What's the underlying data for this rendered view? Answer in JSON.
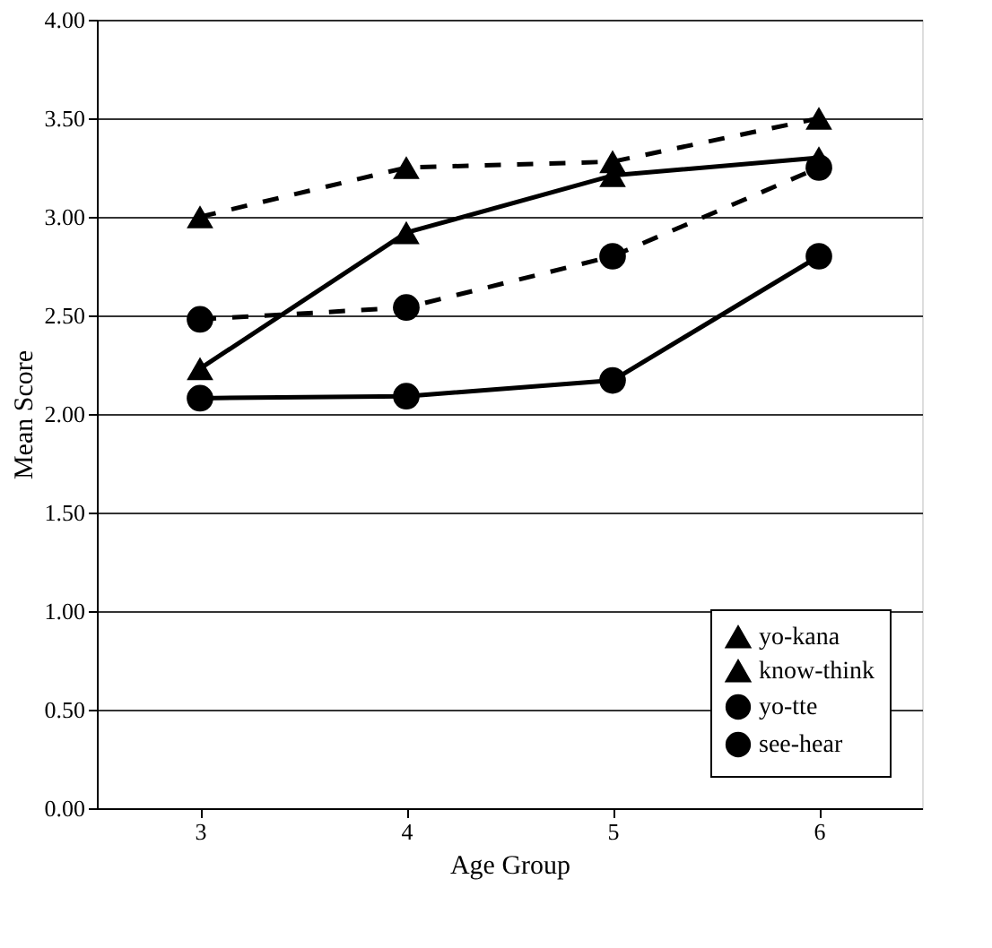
{
  "chart_data": {
    "type": "line",
    "xlabel": "Age Group",
    "ylabel": "Mean Score",
    "categories": [
      "3",
      "4",
      "5",
      "6"
    ],
    "series": [
      {
        "name": "yo-kana",
        "color": "#000000",
        "marker": "triangle",
        "line_style": "dashed",
        "values": [
          3.0,
          3.25,
          3.28,
          3.5
        ]
      },
      {
        "name": "know-think",
        "color": "#000000",
        "marker": "triangle",
        "line_style": "solid",
        "values": [
          2.23,
          2.92,
          3.21,
          3.3
        ]
      },
      {
        "name": "yo-tte",
        "color": "#000000",
        "marker": "circle",
        "line_style": "dashed",
        "values": [
          2.48,
          2.54,
          2.8,
          3.25
        ]
      },
      {
        "name": "see-hear",
        "color": "#000000",
        "marker": "circle",
        "line_style": "solid",
        "values": [
          2.08,
          2.09,
          2.17,
          2.8
        ]
      }
    ],
    "ylim": [
      0,
      4
    ],
    "yticks": [
      {
        "value": 0,
        "label": "0.00"
      },
      {
        "value": 0.5,
        "label": "0.50"
      },
      {
        "value": 1,
        "label": "1.00"
      },
      {
        "value": 1.5,
        "label": "1.50"
      },
      {
        "value": 2,
        "label": "2.00"
      },
      {
        "value": 2.5,
        "label": "2.50"
      },
      {
        "value": 3,
        "label": "3.00"
      },
      {
        "value": 3.5,
        "label": "3.50"
      },
      {
        "value": 4,
        "label": "4.00"
      }
    ],
    "grid": "y",
    "legend": "bottom right"
  }
}
